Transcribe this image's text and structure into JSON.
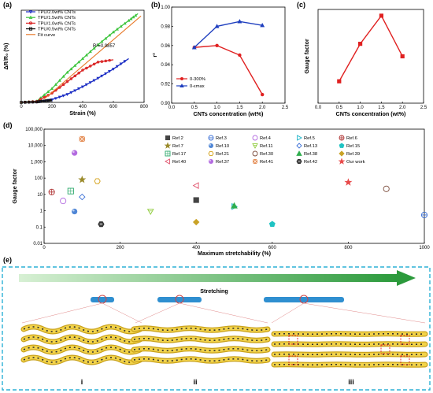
{
  "panels": {
    "a": "(a)",
    "b": "(b)",
    "c": "(c)",
    "d": "(d)",
    "e": "(e)"
  },
  "chart_data": [
    {
      "type": "line",
      "panel": "(a)",
      "xlabel": "Strain (%)",
      "ylabel": "ΔR/R₀ (%)",
      "xlim": [
        0,
        800
      ],
      "xticks": [
        0,
        200,
        400,
        600,
        800
      ],
      "annotation": "R²=0.9857",
      "series": [
        {
          "name": "TPU/2.0wt% CNTs",
          "color": "#1a2cc4",
          "marker": "triangle-down",
          "x": [
            0,
            100,
            200,
            300,
            400,
            500,
            600,
            700
          ],
          "y": [
            0,
            2,
            12,
            35,
            68,
            105,
            145,
            190
          ]
        },
        {
          "name": "TPU/1.5wt% CNTs",
          "color": "#3cc43c",
          "marker": "triangle",
          "x": [
            0,
            100,
            200,
            300,
            400,
            500,
            600,
            700,
            760
          ],
          "y": [
            0,
            5,
            60,
            130,
            190,
            250,
            305,
            355,
            385
          ]
        },
        {
          "name": "TPU/1.0wt% CNTs",
          "color": "#d92020",
          "marker": "circle",
          "x": [
            0,
            100,
            200,
            300,
            400,
            500,
            600
          ],
          "y": [
            0,
            4,
            40,
            90,
            140,
            175,
            185
          ]
        },
        {
          "name": "TPU/0.5wt% CNTs",
          "color": "#111111",
          "marker": "square",
          "x": [
            0,
            100,
            150,
            200
          ],
          "y": [
            0,
            2,
            6,
            10
          ]
        },
        {
          "name": "Fit curve",
          "color": "#e87a2a",
          "marker": "none",
          "x": [
            150,
            780
          ],
          "y": [
            15,
            375
          ]
        }
      ]
    },
    {
      "type": "line",
      "panel": "(b)",
      "xlabel": "CNTs concentration (wt%)",
      "ylabel": "r²",
      "xlim": [
        0.0,
        2.5
      ],
      "ylim": [
        0.9,
        1.0
      ],
      "xticks": [
        "0.0",
        "0.5",
        "1.0",
        "1.5",
        "2.0",
        "2.5"
      ],
      "yticks": [
        "0.90",
        "0.92",
        "0.94",
        "0.96",
        "0.98",
        "1.00"
      ],
      "series": [
        {
          "name": "0-300%",
          "color": "#e02020",
          "marker": "circle",
          "x": [
            0.5,
            1.0,
            1.5,
            2.0
          ],
          "y": [
            0.958,
            0.96,
            0.95,
            0.909
          ]
        },
        {
          "name": "0-εmax",
          "color": "#1f3fbf",
          "marker": "triangle",
          "x": [
            0.5,
            1.0,
            1.5,
            2.0
          ],
          "y": [
            0.958,
            0.98,
            0.985,
            0.981
          ]
        }
      ]
    },
    {
      "type": "line",
      "panel": "(c)",
      "xlabel": "CNTs concentration (wt%)",
      "ylabel": "Gauge factor",
      "xlim": [
        0.0,
        2.5
      ],
      "ylim": [
        0,
        60
      ],
      "xticks": [
        "0.0",
        "0.5",
        "1.0",
        "1.5",
        "2.0",
        "2.5"
      ],
      "series": [
        {
          "name": "",
          "color": "#e02020",
          "marker": "square",
          "x": [
            0.5,
            1.0,
            1.5,
            2.0
          ],
          "y": [
            14,
            38,
            56,
            30
          ]
        }
      ]
    },
    {
      "type": "scatter",
      "panel": "(d)",
      "xlabel": "Maximum stretchability (%)",
      "ylabel": "Gauge factor",
      "xlim": [
        0,
        1000
      ],
      "ylim": [
        0.01,
        100000
      ],
      "yscale": "log",
      "xticks": [
        "0",
        "200",
        "400",
        "600",
        "800",
        "1000"
      ],
      "yticks": [
        "0.01",
        "0.1",
        "1",
        "10",
        "100",
        "1,000",
        "10,000",
        "100,000"
      ],
      "points": [
        {
          "name": "Ref.2",
          "x": 400,
          "y": 4.5,
          "color": "#444444",
          "marker": "square"
        },
        {
          "name": "Ref.3",
          "x": 1000,
          "y": 0.55,
          "color": "#3a6fd6",
          "marker": "circle-minus"
        },
        {
          "name": "Ref.4",
          "x": 50,
          "y": 4,
          "color": "#b36be0",
          "marker": "circle-open"
        },
        {
          "name": "Ref.5",
          "x": 500,
          "y": 1.8,
          "color": "#19b3c8",
          "marker": "triangle-right"
        },
        {
          "name": "Ref.6",
          "x": 20,
          "y": 14,
          "color": "#b23a3a",
          "marker": "circle-plus"
        },
        {
          "name": "Ref.7",
          "x": 100,
          "y": 80,
          "color": "#9a8a2a",
          "marker": "star"
        },
        {
          "name": "Ref.10",
          "x": 80,
          "y": 0.9,
          "color": "#4f86d6",
          "marker": "ball"
        },
        {
          "name": "Ref.11",
          "x": 280,
          "y": 0.9,
          "color": "#8ecb3a",
          "marker": "triangle-down-open"
        },
        {
          "name": "Ref.13",
          "x": 100,
          "y": 7,
          "color": "#3a6fd6",
          "marker": "diamond-open"
        },
        {
          "name": "Ref.15",
          "x": 600,
          "y": 0.15,
          "color": "#1fc3c3",
          "marker": "pentagon"
        },
        {
          "name": "Ref.17",
          "x": 70,
          "y": 16,
          "color": "#2aa86a",
          "marker": "square-grid"
        },
        {
          "name": "Ref.21",
          "x": 140,
          "y": 65,
          "color": "#d4a017",
          "marker": "hexagon-open"
        },
        {
          "name": "Ref.30",
          "x": 900,
          "y": 22,
          "color": "#7a4a3a",
          "marker": "circle-open"
        },
        {
          "name": "Ref.38",
          "x": 500,
          "y": 2,
          "color": "#2fae4e",
          "marker": "triangle"
        },
        {
          "name": "Ref.39",
          "x": 400,
          "y": 0.2,
          "color": "#c9a227",
          "marker": "diamond"
        },
        {
          "name": "Ref.40",
          "x": 400,
          "y": 35,
          "color": "#e0506a",
          "marker": "triangle-left-open"
        },
        {
          "name": "Ref.37",
          "x": 80,
          "y": 3500,
          "color": "#b36be0",
          "marker": "ball"
        },
        {
          "name": "Ref.41",
          "x": 100,
          "y": 25000,
          "color": "#e07a3a",
          "marker": "square-x"
        },
        {
          "name": "Ref.42",
          "x": 150,
          "y": 0.15,
          "color": "#333333",
          "marker": "hex-half"
        },
        {
          "name": "Our work",
          "x": 800,
          "y": 55,
          "color": "#e84a4a",
          "marker": "star"
        }
      ]
    }
  ],
  "panel_e": {
    "stretch_label": "Stretching",
    "stages": [
      "i",
      "ii",
      "iii"
    ]
  }
}
